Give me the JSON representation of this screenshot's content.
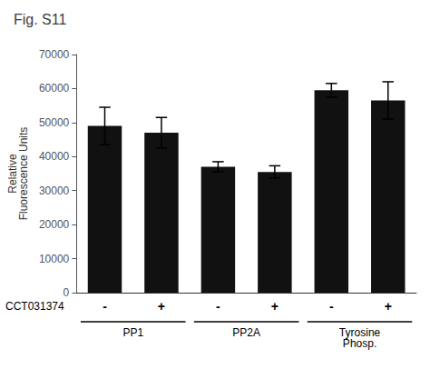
{
  "chart_data": {
    "type": "bar",
    "title": "Fig. S11",
    "ylabel": "Relative\nFluorescence Units",
    "categories": [
      "-",
      "+",
      "-",
      "+",
      "-",
      "+"
    ],
    "groups": [
      "PP1",
      "PP1",
      "PP2A",
      "PP2A",
      "Tyrosine\nPhosp.",
      "Tyrosine\nPhosp."
    ],
    "row_label": "CCT031374",
    "values": [
      49000,
      47000,
      37000,
      35500,
      59500,
      56500
    ],
    "errors": [
      5500,
      4500,
      1500,
      1800,
      2000,
      5500
    ],
    "color": "#111111",
    "ylim": [
      0,
      70000
    ],
    "yticks": [
      0,
      10000,
      20000,
      30000,
      40000,
      50000,
      60000,
      70000
    ],
    "grid": false
  }
}
